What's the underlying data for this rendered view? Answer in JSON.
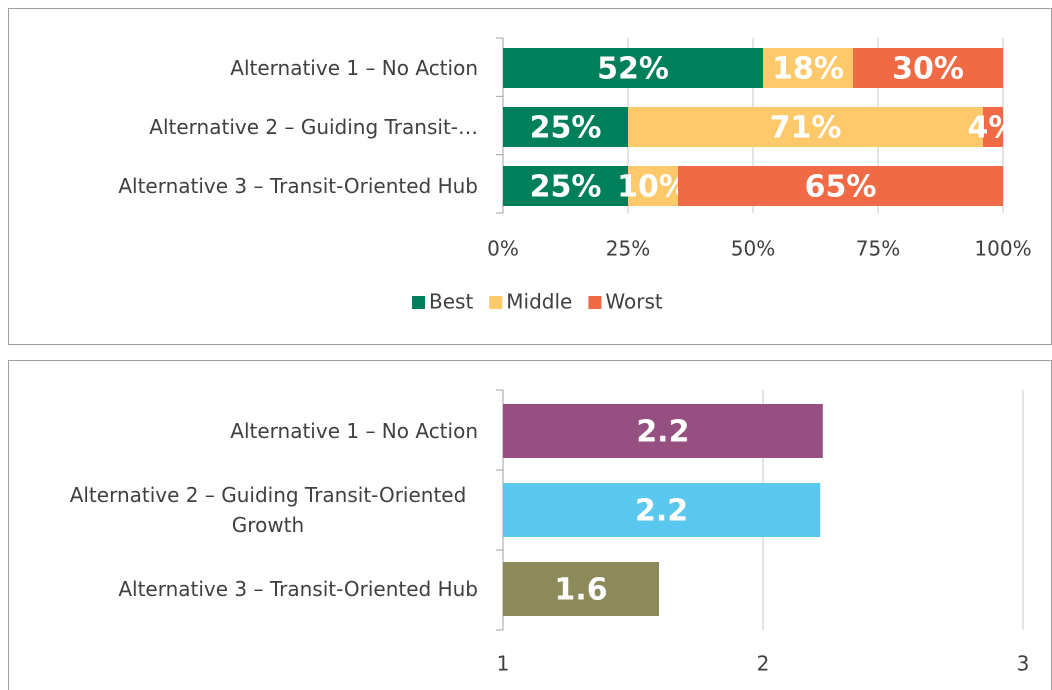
{
  "chart_data": [
    {
      "type": "stacked_bar",
      "categories": [
        "Alternative 1 – No Action",
        "Alternative 2 – Guiding Transit-…",
        "Alternative 3 – Transit-Oriented Hub"
      ],
      "series": [
        {
          "name": "Best",
          "color": "#00805a",
          "values": [
            52,
            25,
            25
          ],
          "value_labels": [
            "52%",
            "25%",
            "25%"
          ]
        },
        {
          "name": "Middle",
          "color": "#fec96a",
          "values": [
            18,
            71,
            10
          ],
          "value_labels": [
            "18%",
            "71%",
            "10%"
          ]
        },
        {
          "name": "Worst",
          "color": "#f06a45",
          "values": [
            30,
            4,
            65
          ],
          "value_labels": [
            "30%",
            "4%",
            "65%"
          ]
        }
      ],
      "xlim": [
        0,
        100
      ],
      "xticks": [
        {
          "value": 0,
          "label": "0%"
        },
        {
          "value": 25,
          "label": "25%"
        },
        {
          "value": 50,
          "label": "50%"
        },
        {
          "value": 75,
          "label": "75%"
        },
        {
          "value": 100,
          "label": "100%"
        }
      ],
      "grid": true,
      "legend": "bottom"
    },
    {
      "type": "bar",
      "categories": [
        "Alternative 1 – No Action",
        "Alternative 2 – Guiding Transit-Oriented Growth",
        "Alternative 3 – Transit-Oriented Hub"
      ],
      "values": [
        2.23,
        2.22,
        1.6
      ],
      "value_labels": [
        "2.2",
        "2.2",
        "1.6"
      ],
      "colors": [
        "#954f80",
        "#5bc8ef",
        "#8c8a5a"
      ],
      "xlim": [
        1,
        3
      ],
      "xticks": [
        1,
        2,
        3
      ],
      "grid": true
    }
  ]
}
